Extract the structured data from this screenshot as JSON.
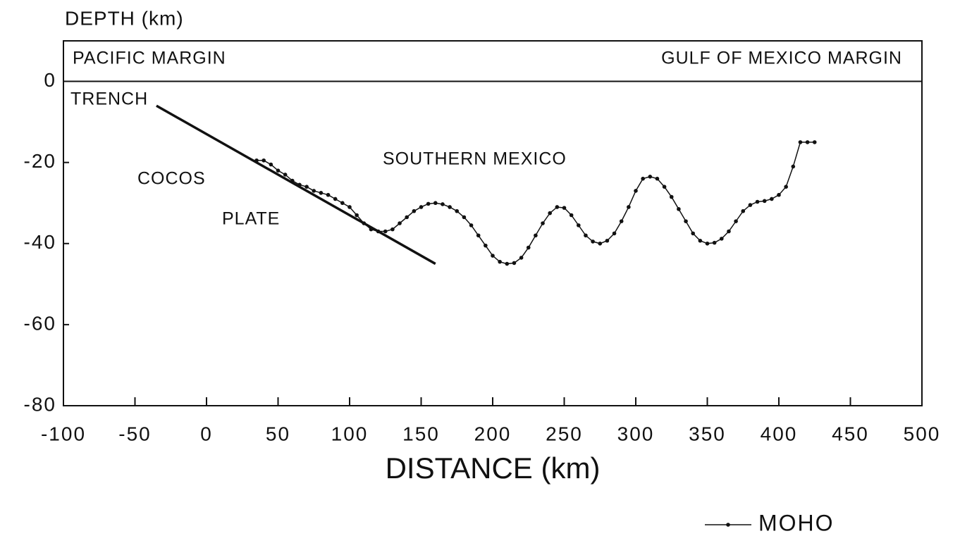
{
  "chart_data": {
    "type": "line",
    "ylabel": "DEPTH (km)",
    "xlabel": "DISTANCE (km)",
    "annotations": [
      "PACIFIC MARGIN",
      "GULF OF MEXICO MARGIN",
      "TRENCH",
      "COCOS",
      "PLATE",
      "SOUTHERN MEXICO"
    ],
    "xlim": [
      -100,
      500
    ],
    "xticks": [
      -100,
      -50,
      0,
      50,
      100,
      150,
      200,
      250,
      300,
      350,
      400,
      450,
      500
    ],
    "ylim": [
      -80,
      10
    ],
    "yticks": [
      0,
      -20,
      -40,
      -60,
      -80
    ],
    "series": [
      {
        "name": "MOHO",
        "color": "#111111",
        "markers": true,
        "x": [
          35,
          40,
          45,
          50,
          55,
          60,
          65,
          70,
          75,
          80,
          85,
          90,
          95,
          100,
          105,
          110,
          115,
          120,
          125,
          130,
          135,
          140,
          145,
          150,
          155,
          160,
          165,
          170,
          175,
          180,
          185,
          190,
          195,
          200,
          205,
          210,
          215,
          220,
          225,
          230,
          235,
          240,
          245,
          250,
          255,
          260,
          265,
          270,
          275,
          280,
          285,
          290,
          295,
          300,
          305,
          310,
          315,
          320,
          325,
          330,
          335,
          340,
          345,
          350,
          355,
          360,
          365,
          370,
          375,
          380,
          385,
          390,
          395,
          400,
          405,
          410,
          415,
          420,
          425
        ],
        "values": [
          -19.5,
          -19.5,
          -20.5,
          -22,
          -23,
          -24.5,
          -25.5,
          -26,
          -27,
          -27.5,
          -28,
          -29,
          -30,
          -31,
          -33,
          -35,
          -36.5,
          -37,
          -37,
          -36.5,
          -35,
          -33.5,
          -32,
          -31,
          -30.2,
          -30,
          -30.3,
          -31,
          -32,
          -33.5,
          -35.5,
          -38,
          -40.5,
          -43,
          -44.5,
          -45,
          -44.8,
          -43.5,
          -41,
          -38,
          -35,
          -32.5,
          -31,
          -31.2,
          -33,
          -35.5,
          -38,
          -39.5,
          -40,
          -39.3,
          -37.5,
          -34.5,
          -31,
          -27,
          -24,
          -23.5,
          -24,
          -26,
          -28.5,
          -31.5,
          -34.5,
          -37.5,
          -39.3,
          -40,
          -39.8,
          -38.8,
          -37,
          -34.5,
          -32,
          -30.5,
          -29.7,
          -29.5,
          -29,
          -28,
          -26,
          -21,
          -15,
          -15,
          -15
        ]
      },
      {
        "color": "#111111",
        "markers": false,
        "width": 3.5,
        "x": [
          -35,
          160
        ],
        "values": [
          -6,
          -45
        ]
      }
    ]
  }
}
